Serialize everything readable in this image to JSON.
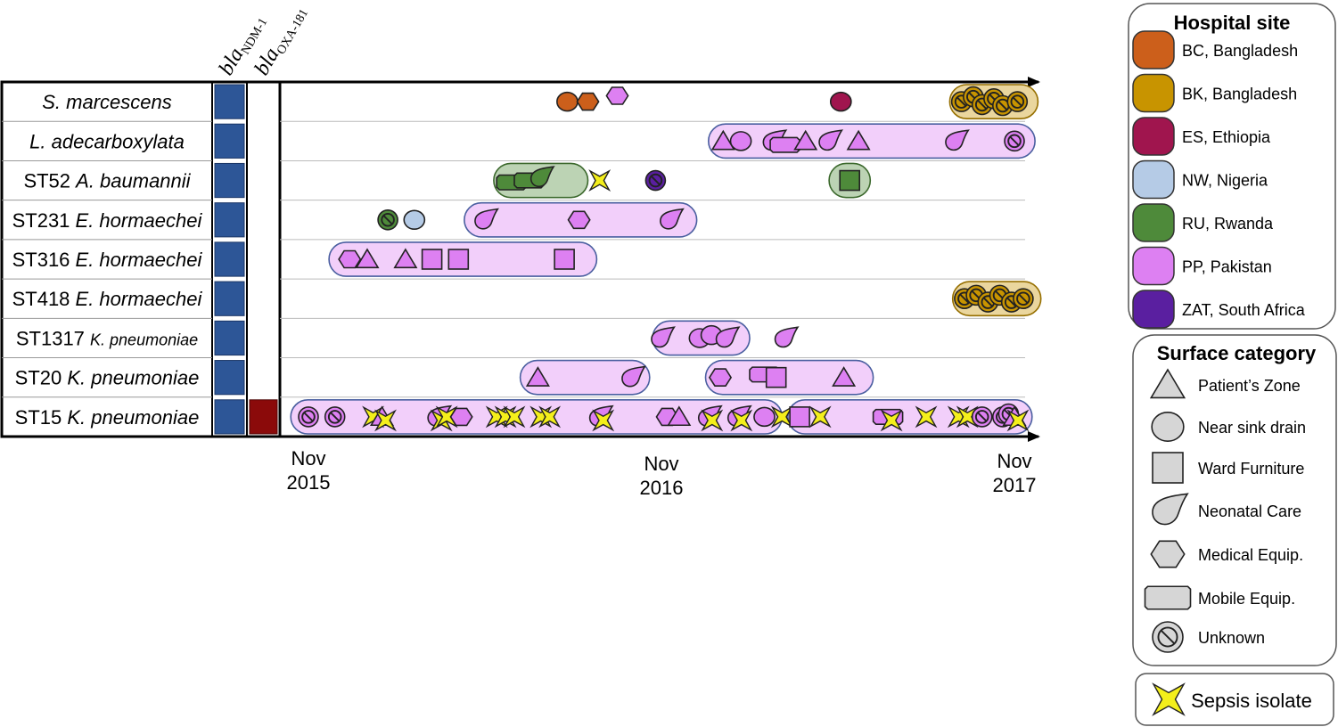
{
  "colors": {
    "BC": "#cc5f1b",
    "BK": "#c89400",
    "ES": "#a0154e",
    "NW": "#b5cbe6",
    "RU": "#4e8a3a",
    "PP": "#dd80f2",
    "ZAT": "#5a1fa0",
    "gene_ndm": "#2d5697",
    "gene_oxa": "#8b0a0a",
    "sepsis": "#f4ef1b"
  },
  "genes": [
    {
      "base": "bla",
      "sub": "NDM-1"
    },
    {
      "base": "bla",
      "sub": "OXA-181"
    }
  ],
  "rows": [
    {
      "italic": "S. marcescens",
      "small": false,
      "ndm": true,
      "oxa": false
    },
    {
      "italic": "L. adecarboxylata",
      "small": false,
      "ndm": true,
      "oxa": false
    },
    {
      "prefix": "ST52 ",
      "italic": "A. baumannii",
      "small": false,
      "ndm": true,
      "oxa": false
    },
    {
      "prefix": "ST231 ",
      "italic": "E. hormaechei",
      "small": false,
      "ndm": true,
      "oxa": false
    },
    {
      "prefix": "ST316 ",
      "italic": "E. hormaechei",
      "small": false,
      "ndm": true,
      "oxa": false
    },
    {
      "prefix": "ST418 ",
      "italic": "E. hormaechei",
      "small": false,
      "ndm": true,
      "oxa": false
    },
    {
      "prefix": "ST1317 ",
      "italic": "K. pneumoniae",
      "small": true,
      "ndm": true,
      "oxa": false
    },
    {
      "prefix": "ST20 ",
      "italic": "K. pneumoniae",
      "small": false,
      "ndm": true,
      "oxa": false
    },
    {
      "prefix": "ST15 ",
      "italic": "K. pneumoniae",
      "small": false,
      "ndm": true,
      "oxa": true
    }
  ],
  "x_ticks": [
    {
      "line1": "Nov",
      "line2": "2015",
      "month": 0
    },
    {
      "line1": "Nov",
      "line2": "2016",
      "month": 12
    },
    {
      "line1": "Nov",
      "line2": "2017",
      "month": 24
    }
  ],
  "legend": {
    "hospital_title": "Hospital site",
    "hospital_items": [
      {
        "code": "BC",
        "label": "BC, Bangladesh"
      },
      {
        "code": "BK",
        "label": "BK, Bangladesh"
      },
      {
        "code": "ES",
        "label": "ES, Ethiopia"
      },
      {
        "code": "NW",
        "label": "NW, Nigeria"
      },
      {
        "code": "RU",
        "label": "RU, Rwanda"
      },
      {
        "code": "PP",
        "label": "PP, Pakistan"
      },
      {
        "code": "ZAT",
        "label": "ZAT, South Africa"
      }
    ],
    "surface_title": "Surface category",
    "surface_items": [
      {
        "shape": "triangle",
        "label": "Patient’s Zone"
      },
      {
        "shape": "circle",
        "label": "Near sink drain"
      },
      {
        "shape": "square",
        "label": "Ward Furniture"
      },
      {
        "shape": "drop",
        "label": "Neonatal Care"
      },
      {
        "shape": "hexagon",
        "label": "Medical Equip."
      },
      {
        "shape": "mobile",
        "label": "Mobile Equip."
      },
      {
        "shape": "unknown",
        "label": "Unknown"
      }
    ],
    "sepsis_label": "Sepsis isolate"
  },
  "chart_data": {
    "type": "timeline",
    "x_unit": "months since Nov 2015",
    "xlim": [
      0,
      24
    ],
    "clusters": [
      {
        "row": 0,
        "site": "BK",
        "start": 21.8,
        "end": 24.8
      },
      {
        "row": 1,
        "site": "PP",
        "start": 13.6,
        "end": 24.7
      },
      {
        "row": 2,
        "site": "RU",
        "start": 6.3,
        "end": 9.5
      },
      {
        "row": 2,
        "site": "RU",
        "start": 17.7,
        "end": 19.1
      },
      {
        "row": 3,
        "site": "PP",
        "start": 5.3,
        "end": 13.2
      },
      {
        "row": 4,
        "site": "PP",
        "start": 0.7,
        "end": 9.8
      },
      {
        "row": 5,
        "site": "BK",
        "start": 21.9,
        "end": 24.9
      },
      {
        "row": 6,
        "site": "PP",
        "start": 11.7,
        "end": 15.0
      },
      {
        "row": 7,
        "site": "PP",
        "start": 7.2,
        "end": 11.6
      },
      {
        "row": 7,
        "site": "PP",
        "start": 13.5,
        "end": 19.2
      },
      {
        "row": 8,
        "site": "PP",
        "start": -0.6,
        "end": 16.1
      },
      {
        "row": 8,
        "site": "PP",
        "start": 16.3,
        "end": 24.6
      }
    ],
    "isolates": [
      {
        "row": 0,
        "x": 8.8,
        "site": "BC",
        "shape": "circle",
        "sepsis": false
      },
      {
        "row": 0,
        "x": 9.5,
        "site": "BC",
        "shape": "hexagon",
        "sepsis": false
      },
      {
        "row": 0,
        "x": 10.5,
        "site": "PP",
        "shape": "hexagon",
        "sepsis": false,
        "dy": -0.6
      },
      {
        "row": 0,
        "x": 18.1,
        "site": "ES",
        "shape": "circle",
        "sepsis": false
      },
      {
        "row": 0,
        "x": 22.2,
        "site": "BK",
        "shape": "unknown",
        "sepsis": false
      },
      {
        "row": 0,
        "x": 22.6,
        "site": "BK",
        "shape": "unknown",
        "sepsis": false,
        "dy": -0.5
      },
      {
        "row": 0,
        "x": 22.9,
        "site": "BK",
        "shape": "unknown",
        "sepsis": false,
        "dy": 0.3
      },
      {
        "row": 0,
        "x": 23.3,
        "site": "BK",
        "shape": "unknown",
        "sepsis": false,
        "dy": -0.3
      },
      {
        "row": 0,
        "x": 23.6,
        "site": "BK",
        "shape": "unknown",
        "sepsis": false,
        "dy": 0.4
      },
      {
        "row": 0,
        "x": 24.1,
        "site": "BK",
        "shape": "unknown",
        "sepsis": false
      },
      {
        "row": 1,
        "x": 14.1,
        "site": "PP",
        "shape": "triangle",
        "sepsis": false
      },
      {
        "row": 1,
        "x": 14.7,
        "site": "PP",
        "shape": "circle",
        "sepsis": false
      },
      {
        "row": 1,
        "x": 15.8,
        "site": "PP",
        "shape": "drop",
        "sepsis": false
      },
      {
        "row": 1,
        "x": 16.2,
        "site": "PP",
        "shape": "mobile",
        "sepsis": false,
        "dy": 0.4
      },
      {
        "row": 1,
        "x": 16.9,
        "site": "PP",
        "shape": "triangle",
        "sepsis": false
      },
      {
        "row": 1,
        "x": 17.7,
        "site": "PP",
        "shape": "drop",
        "sepsis": false
      },
      {
        "row": 1,
        "x": 18.7,
        "site": "PP",
        "shape": "triangle",
        "sepsis": false
      },
      {
        "row": 1,
        "x": 22.0,
        "site": "PP",
        "shape": "drop",
        "sepsis": false
      },
      {
        "row": 1,
        "x": 24.0,
        "site": "PP",
        "shape": "unknown",
        "sepsis": false
      },
      {
        "row": 2,
        "x": 6.9,
        "site": "RU",
        "shape": "mobile",
        "sepsis": false,
        "dy": 0.2
      },
      {
        "row": 2,
        "x": 7.5,
        "site": "RU",
        "shape": "mobile",
        "sepsis": false
      },
      {
        "row": 2,
        "x": 7.9,
        "site": "RU",
        "shape": "drop",
        "sepsis": false,
        "dy": -0.3
      },
      {
        "row": 2,
        "x": 9.9,
        "site": "BK",
        "shape": "none",
        "sepsis": true
      },
      {
        "row": 2,
        "x": 11.8,
        "site": "ZAT",
        "shape": "unknown",
        "sepsis": false
      },
      {
        "row": 2,
        "x": 18.4,
        "site": "RU",
        "shape": "square",
        "sepsis": false
      },
      {
        "row": 3,
        "x": 2.7,
        "site": "RU",
        "shape": "unknown",
        "sepsis": false
      },
      {
        "row": 3,
        "x": 3.6,
        "site": "NW",
        "shape": "circle",
        "sepsis": false
      },
      {
        "row": 3,
        "x": 6.0,
        "site": "PP",
        "shape": "drop",
        "sepsis": false
      },
      {
        "row": 3,
        "x": 9.2,
        "site": "PP",
        "shape": "hexagon",
        "sepsis": false
      },
      {
        "row": 3,
        "x": 12.3,
        "site": "PP",
        "shape": "drop",
        "sepsis": false
      },
      {
        "row": 4,
        "x": 1.4,
        "site": "PP",
        "shape": "hexagon",
        "sepsis": false
      },
      {
        "row": 4,
        "x": 2.0,
        "site": "PP",
        "shape": "triangle",
        "sepsis": false
      },
      {
        "row": 4,
        "x": 3.3,
        "site": "PP",
        "shape": "triangle",
        "sepsis": false
      },
      {
        "row": 4,
        "x": 4.2,
        "site": "PP",
        "shape": "square",
        "sepsis": false
      },
      {
        "row": 4,
        "x": 5.1,
        "site": "PP",
        "shape": "square",
        "sepsis": false
      },
      {
        "row": 4,
        "x": 8.7,
        "site": "PP",
        "shape": "square",
        "sepsis": false
      },
      {
        "row": 5,
        "x": 22.3,
        "site": "BK",
        "shape": "unknown",
        "sepsis": false
      },
      {
        "row": 5,
        "x": 22.7,
        "site": "BK",
        "shape": "unknown",
        "sepsis": false,
        "dy": -0.35
      },
      {
        "row": 5,
        "x": 23.1,
        "site": "BK",
        "shape": "unknown",
        "sepsis": false,
        "dy": 0.35
      },
      {
        "row": 5,
        "x": 23.5,
        "site": "BK",
        "shape": "unknown",
        "sepsis": false,
        "dy": -0.35
      },
      {
        "row": 5,
        "x": 23.9,
        "site": "BK",
        "shape": "unknown",
        "sepsis": false,
        "dy": 0.35
      },
      {
        "row": 5,
        "x": 24.3,
        "site": "BK",
        "shape": "unknown",
        "sepsis": false
      },
      {
        "row": 6,
        "x": 12.0,
        "site": "PP",
        "shape": "drop",
        "sepsis": false
      },
      {
        "row": 6,
        "x": 13.3,
        "site": "PP",
        "shape": "circle",
        "sepsis": false
      },
      {
        "row": 6,
        "x": 13.7,
        "site": "PP",
        "shape": "circle",
        "sepsis": false,
        "dy": -0.3
      },
      {
        "row": 6,
        "x": 14.2,
        "site": "PP",
        "shape": "drop",
        "sepsis": false
      },
      {
        "row": 6,
        "x": 16.2,
        "site": "PP",
        "shape": "drop",
        "sepsis": false
      },
      {
        "row": 7,
        "x": 7.8,
        "site": "PP",
        "shape": "triangle",
        "sepsis": false
      },
      {
        "row": 7,
        "x": 11.0,
        "site": "PP",
        "shape": "drop",
        "sepsis": false
      },
      {
        "row": 7,
        "x": 14.0,
        "site": "PP",
        "shape": "hexagon",
        "sepsis": false
      },
      {
        "row": 7,
        "x": 15.5,
        "site": "PP",
        "shape": "mobile",
        "sepsis": false,
        "dy": -0.3
      },
      {
        "row": 7,
        "x": 15.9,
        "site": "PP",
        "shape": "square",
        "sepsis": false
      },
      {
        "row": 7,
        "x": 18.2,
        "site": "PP",
        "shape": "triangle",
        "sepsis": false
      },
      {
        "row": 8,
        "x": 0.0,
        "site": "PP",
        "shape": "unknown",
        "sepsis": false
      },
      {
        "row": 8,
        "x": 0.9,
        "site": "PP",
        "shape": "unknown",
        "sepsis": false
      },
      {
        "row": 8,
        "x": 2.2,
        "site": "PP",
        "shape": "none",
        "sepsis": true
      },
      {
        "row": 8,
        "x": 2.5,
        "site": "PP",
        "shape": "triangle",
        "sepsis": true
      },
      {
        "row": 8,
        "x": 4.4,
        "site": "PP",
        "shape": "drop",
        "sepsis": true
      },
      {
        "row": 8,
        "x": 4.7,
        "site": "PP",
        "shape": "none",
        "sepsis": true
      },
      {
        "row": 8,
        "x": 5.2,
        "site": "PP",
        "shape": "hexagon",
        "sepsis": false
      },
      {
        "row": 8,
        "x": 6.4,
        "site": "PP",
        "shape": "none",
        "sepsis": true
      },
      {
        "row": 8,
        "x": 6.7,
        "site": "PP",
        "shape": "none",
        "sepsis": true
      },
      {
        "row": 8,
        "x": 7.0,
        "site": "PP",
        "shape": "none",
        "sepsis": true
      },
      {
        "row": 8,
        "x": 7.9,
        "site": "PP",
        "shape": "none",
        "sepsis": true
      },
      {
        "row": 8,
        "x": 8.2,
        "site": "PP",
        "shape": "none",
        "sepsis": true
      },
      {
        "row": 8,
        "x": 9.9,
        "site": "PP",
        "shape": "drop",
        "sepsis": true
      },
      {
        "row": 8,
        "x": 12.2,
        "site": "PP",
        "shape": "hexagon",
        "sepsis": false
      },
      {
        "row": 8,
        "x": 12.6,
        "site": "PP",
        "shape": "triangle",
        "sepsis": false
      },
      {
        "row": 8,
        "x": 13.6,
        "site": "PP",
        "shape": "drop",
        "sepsis": true
      },
      {
        "row": 8,
        "x": 14.6,
        "site": "PP",
        "shape": "drop",
        "sepsis": true
      },
      {
        "row": 8,
        "x": 15.5,
        "site": "PP",
        "shape": "circle",
        "sepsis": false
      },
      {
        "row": 8,
        "x": 16.1,
        "site": "PP",
        "shape": "none",
        "sepsis": true
      },
      {
        "row": 8,
        "x": 16.7,
        "site": "PP",
        "shape": "square",
        "sepsis": false
      },
      {
        "row": 8,
        "x": 17.4,
        "site": "PP",
        "shape": "none",
        "sepsis": true
      },
      {
        "row": 8,
        "x": 19.7,
        "site": "PP",
        "shape": "mobile",
        "sepsis": true
      },
      {
        "row": 8,
        "x": 21.0,
        "site": "PP",
        "shape": "none",
        "sepsis": true
      },
      {
        "row": 8,
        "x": 22.1,
        "site": "PP",
        "shape": "none",
        "sepsis": true
      },
      {
        "row": 8,
        "x": 22.4,
        "site": "PP",
        "shape": "none",
        "sepsis": true
      },
      {
        "row": 8,
        "x": 22.9,
        "site": "PP",
        "shape": "unknown",
        "sepsis": false
      },
      {
        "row": 8,
        "x": 23.6,
        "site": "PP",
        "shape": "unknown",
        "sepsis": false
      },
      {
        "row": 8,
        "x": 23.8,
        "site": "PP",
        "shape": "unknown",
        "sepsis": false,
        "dy": -0.3
      },
      {
        "row": 8,
        "x": 24.0,
        "site": "PP",
        "shape": "triangle",
        "sepsis": true
      }
    ]
  }
}
